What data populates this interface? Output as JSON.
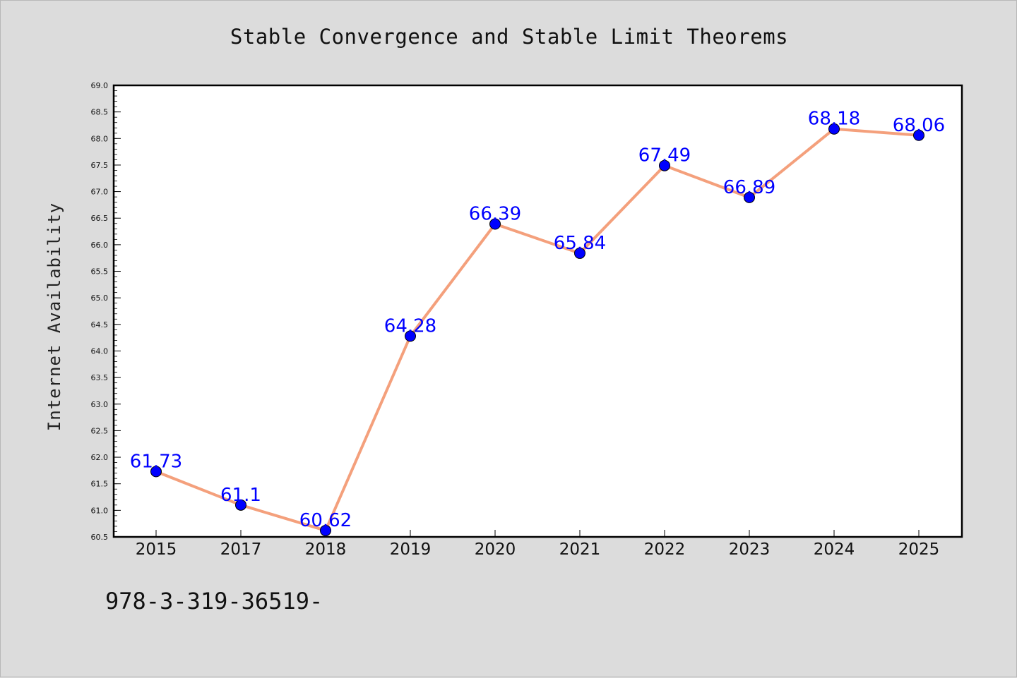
{
  "chart_data": {
    "type": "line",
    "title": "Stable Convergence and Stable Limit Theorems",
    "xlabel": "",
    "ylabel": "Internet Availability",
    "categories": [
      "2015",
      "2017",
      "2018",
      "2019",
      "2020",
      "2021",
      "2022",
      "2023",
      "2024",
      "2025"
    ],
    "values": [
      61.73,
      61.1,
      60.62,
      64.28,
      66.39,
      65.84,
      67.49,
      66.89,
      68.18,
      68.06
    ],
    "data_labels": [
      "61.73",
      "61.1",
      "60.62",
      "64.28",
      "66.39",
      "65.84",
      "67.49",
      "66.89",
      "68.18",
      "68.06"
    ],
    "ylim": [
      60.5,
      69.0
    ],
    "yticks": [
      "60.5",
      "61.0",
      "61.5",
      "62.0",
      "62.5",
      "63.0",
      "63.5",
      "64.0",
      "64.5",
      "65.0",
      "65.5",
      "66.0",
      "66.5",
      "67.0",
      "67.5",
      "68.0",
      "68.5",
      "69.0"
    ],
    "grid": false,
    "line_color": "#f4a07c",
    "marker_color": "#0000ff",
    "label_color": "#0000ff"
  },
  "footer": {
    "code": "978-3-319-36519-"
  }
}
